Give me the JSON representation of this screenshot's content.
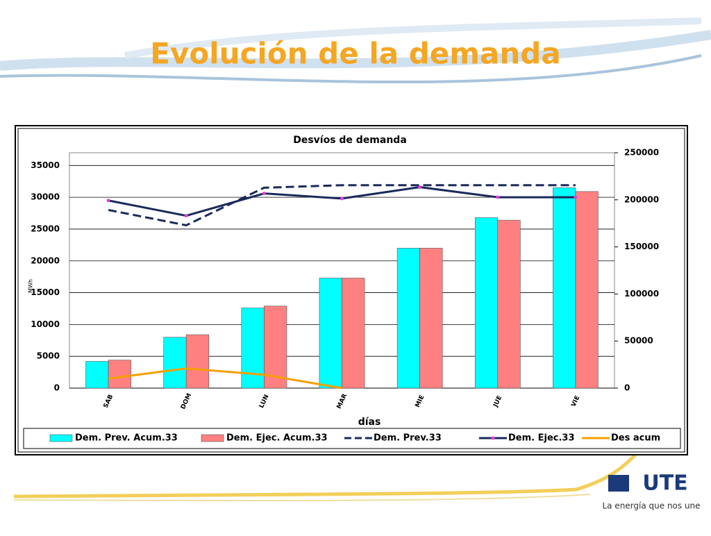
{
  "slide_title": "Evolución de la demanda",
  "logo": {
    "text": "UTE",
    "tagline": "La energía que nos une"
  },
  "chart_data": {
    "type": "bar",
    "title": "Desvíos de demanda",
    "x_label": "días",
    "y_label": "MWh",
    "categories": [
      "SAB",
      "DOM",
      "LUN",
      "MAR",
      "MIE",
      "JUE",
      "VIE"
    ],
    "ylim": [
      0,
      37000
    ],
    "yticks": [
      0,
      5000,
      10000,
      15000,
      20000,
      25000,
      30000,
      35000
    ],
    "y2lim": [
      0,
      250000
    ],
    "y2ticks": [
      0,
      50000,
      100000,
      150000,
      200000,
      250000
    ],
    "grid": true,
    "legend": "bottom",
    "series": [
      {
        "name": "Dem. Prev. Acum.33",
        "type": "bar",
        "color": "#00ffff",
        "values": [
          4200,
          8000,
          12600,
          17300,
          22000,
          26800,
          31500
        ]
      },
      {
        "name": "Dem. Ejec. Acum.33",
        "type": "bar",
        "color": "#ff8080",
        "values": [
          4400,
          8400,
          12900,
          17300,
          22000,
          26400,
          30900
        ]
      },
      {
        "name": "Dem. Prev.33",
        "type": "line",
        "dashed": true,
        "color": "#1a2a5a",
        "values": [
          28000,
          25600,
          31500,
          31900,
          31900,
          31900,
          31900
        ]
      },
      {
        "name": "Dem. Ejec.33",
        "type": "line",
        "color": "#1a2a5a",
        "marker_color": "#e040e0",
        "values": [
          29500,
          27100,
          30600,
          29800,
          31600,
          30000,
          30000
        ]
      },
      {
        "name": "Des acum",
        "type": "line",
        "color": "#f5a000",
        "values": [
          1500,
          3100,
          2100,
          0,
          null,
          null,
          null
        ]
      }
    ]
  }
}
